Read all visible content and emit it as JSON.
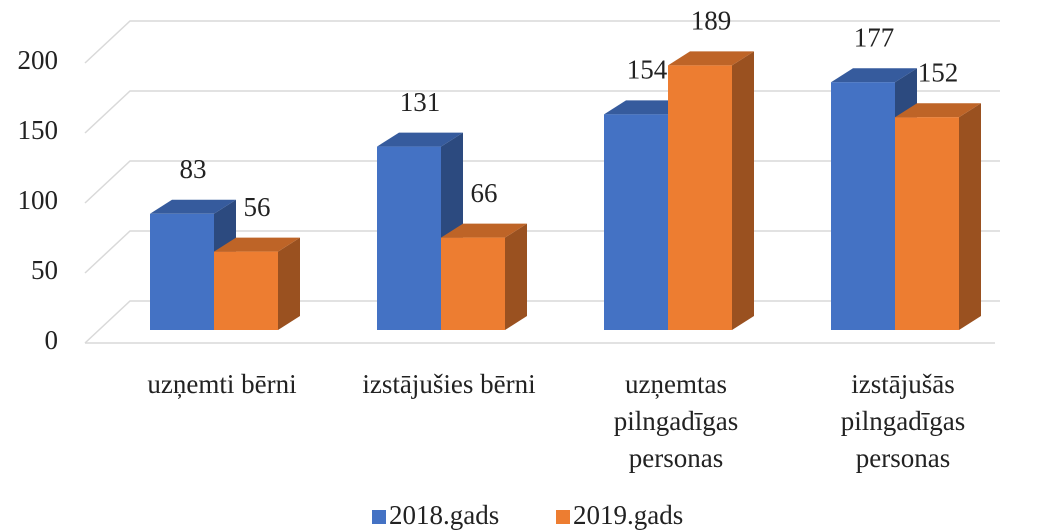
{
  "chart_data": {
    "type": "bar3d",
    "categories": [
      "uzņemti bērni",
      "izstājušies bērni",
      "uzņemtas pilngadīgas personas",
      "izstājušās pilngadīgas personas"
    ],
    "series": [
      {
        "name": "2018.gads",
        "color": "#4472c4",
        "values": [
          83,
          131,
          154,
          177
        ]
      },
      {
        "name": "2019.gads",
        "color": "#ed7d31",
        "values": [
          56,
          66,
          189,
          152
        ]
      }
    ],
    "ylim": [
      0,
      200
    ],
    "yticks": [
      0,
      50,
      100,
      150,
      200
    ],
    "grid": true,
    "legend": "bottom"
  }
}
